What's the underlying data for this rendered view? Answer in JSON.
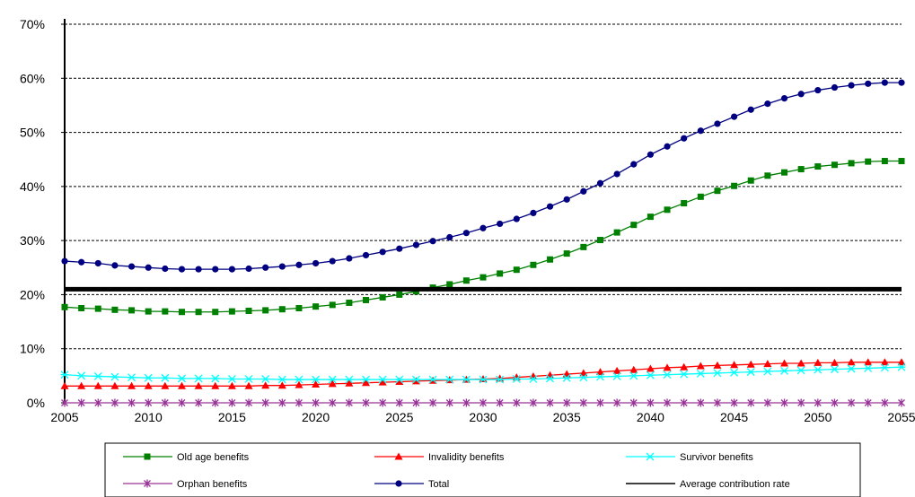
{
  "chart_data": {
    "type": "line",
    "title": "",
    "xlabel": "",
    "ylabel": "",
    "xlim": [
      2005,
      2055
    ],
    "ylim": [
      0,
      70
    ],
    "y_unit": "%",
    "x_ticks": [
      2005,
      2010,
      2015,
      2020,
      2025,
      2030,
      2035,
      2040,
      2045,
      2050,
      2055
    ],
    "y_ticks": [
      0,
      10,
      20,
      30,
      40,
      50,
      60,
      70
    ],
    "y_tick_labels": [
      "0%",
      "10%",
      "20%",
      "30%",
      "40%",
      "50%",
      "60%",
      "70%"
    ],
    "grid": "horizontal dashed",
    "legend_position": "bottom",
    "x": [
      2005,
      2006,
      2007,
      2008,
      2009,
      2010,
      2011,
      2012,
      2013,
      2014,
      2015,
      2016,
      2017,
      2018,
      2019,
      2020,
      2021,
      2022,
      2023,
      2024,
      2025,
      2026,
      2027,
      2028,
      2029,
      2030,
      2031,
      2032,
      2033,
      2034,
      2035,
      2036,
      2037,
      2038,
      2039,
      2040,
      2041,
      2042,
      2043,
      2044,
      2045,
      2046,
      2047,
      2048,
      2049,
      2050,
      2051,
      2052,
      2053,
      2054,
      2055
    ],
    "series": [
      {
        "name": "Old age benefits",
        "color": "#008000",
        "marker": "square",
        "values": [
          17.7,
          17.5,
          17.4,
          17.2,
          17.1,
          16.9,
          16.9,
          16.8,
          16.8,
          16.8,
          16.9,
          17.0,
          17.1,
          17.3,
          17.5,
          17.8,
          18.1,
          18.5,
          19.0,
          19.5,
          20.0,
          20.6,
          21.3,
          21.9,
          22.6,
          23.2,
          23.9,
          24.6,
          25.5,
          26.5,
          27.6,
          28.8,
          30.1,
          31.5,
          32.9,
          34.4,
          35.7,
          36.9,
          38.1,
          39.2,
          40.1,
          41.1,
          42.0,
          42.6,
          43.2,
          43.7,
          44.0,
          44.3,
          44.6,
          44.7,
          44.7
        ]
      },
      {
        "name": "Invalidity benefits",
        "color": "#ff0000",
        "marker": "triangle",
        "values": [
          3.1,
          3.1,
          3.1,
          3.1,
          3.1,
          3.1,
          3.1,
          3.1,
          3.1,
          3.1,
          3.1,
          3.1,
          3.2,
          3.2,
          3.3,
          3.4,
          3.5,
          3.6,
          3.7,
          3.8,
          3.9,
          4.0,
          4.1,
          4.2,
          4.3,
          4.4,
          4.5,
          4.7,
          4.9,
          5.1,
          5.3,
          5.5,
          5.7,
          5.9,
          6.1,
          6.3,
          6.5,
          6.6,
          6.8,
          6.9,
          7.0,
          7.1,
          7.2,
          7.3,
          7.3,
          7.4,
          7.4,
          7.5,
          7.5,
          7.5,
          7.5
        ]
      },
      {
        "name": "Survivor benefits",
        "color": "#00ffff",
        "marker": "asterisk",
        "values": [
          5.2,
          5.0,
          4.9,
          4.8,
          4.7,
          4.6,
          4.6,
          4.5,
          4.5,
          4.5,
          4.4,
          4.4,
          4.4,
          4.3,
          4.3,
          4.3,
          4.3,
          4.3,
          4.3,
          4.3,
          4.3,
          4.3,
          4.3,
          4.3,
          4.3,
          4.3,
          4.3,
          4.4,
          4.4,
          4.5,
          4.6,
          4.7,
          4.8,
          4.9,
          5.0,
          5.1,
          5.2,
          5.3,
          5.4,
          5.5,
          5.6,
          5.7,
          5.8,
          5.9,
          6.0,
          6.1,
          6.2,
          6.3,
          6.4,
          6.5,
          6.6
        ]
      },
      {
        "name": "Orphan benefits",
        "color": "#993399",
        "marker": "star",
        "values": [
          0,
          0,
          0,
          0,
          0,
          0,
          0,
          0,
          0,
          0,
          0,
          0,
          0,
          0,
          0,
          0,
          0,
          0,
          0,
          0,
          0,
          0,
          0,
          0,
          0,
          0,
          0,
          0,
          0,
          0,
          0,
          0,
          0,
          0,
          0,
          0,
          0,
          0,
          0,
          0,
          0,
          0,
          0,
          0,
          0,
          0,
          0,
          0,
          0,
          0,
          0
        ]
      },
      {
        "name": "Total",
        "color": "#000080",
        "marker": "circle",
        "values": [
          26.2,
          26.0,
          25.8,
          25.4,
          25.2,
          25.0,
          24.8,
          24.7,
          24.7,
          24.7,
          24.7,
          24.8,
          25.0,
          25.2,
          25.5,
          25.8,
          26.2,
          26.7,
          27.3,
          27.9,
          28.5,
          29.2,
          29.9,
          30.6,
          31.4,
          32.3,
          33.1,
          34.0,
          35.1,
          36.3,
          37.6,
          39.1,
          40.6,
          42.3,
          44.1,
          45.9,
          47.4,
          48.9,
          50.3,
          51.6,
          52.9,
          54.2,
          55.3,
          56.3,
          57.1,
          57.8,
          58.3,
          58.7,
          59.0,
          59.2,
          59.2
        ]
      },
      {
        "name": "Average contribution rate",
        "color": "#000000",
        "marker": "none",
        "values": [
          21,
          21,
          21,
          21,
          21,
          21,
          21,
          21,
          21,
          21,
          21,
          21,
          21,
          21,
          21,
          21,
          21,
          21,
          21,
          21,
          21,
          21,
          21,
          21,
          21,
          21,
          21,
          21,
          21,
          21,
          21,
          21,
          21,
          21,
          21,
          21,
          21,
          21,
          21,
          21,
          21,
          21,
          21,
          21,
          21,
          21,
          21,
          21,
          21,
          21,
          21
        ]
      }
    ]
  }
}
